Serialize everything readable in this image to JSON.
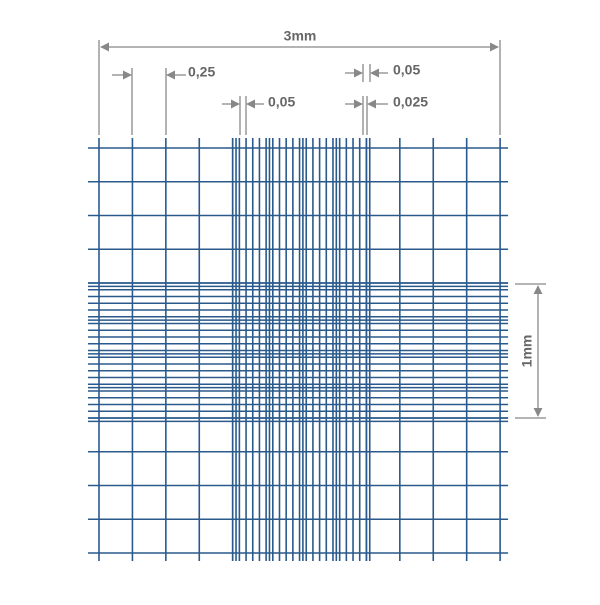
{
  "dimensions": {
    "width": "3mm",
    "large_square": "0,25",
    "small_square_left": "0,05",
    "small_square_right": "0,05",
    "triple_line": "0,025",
    "height": "1mm"
  }
}
